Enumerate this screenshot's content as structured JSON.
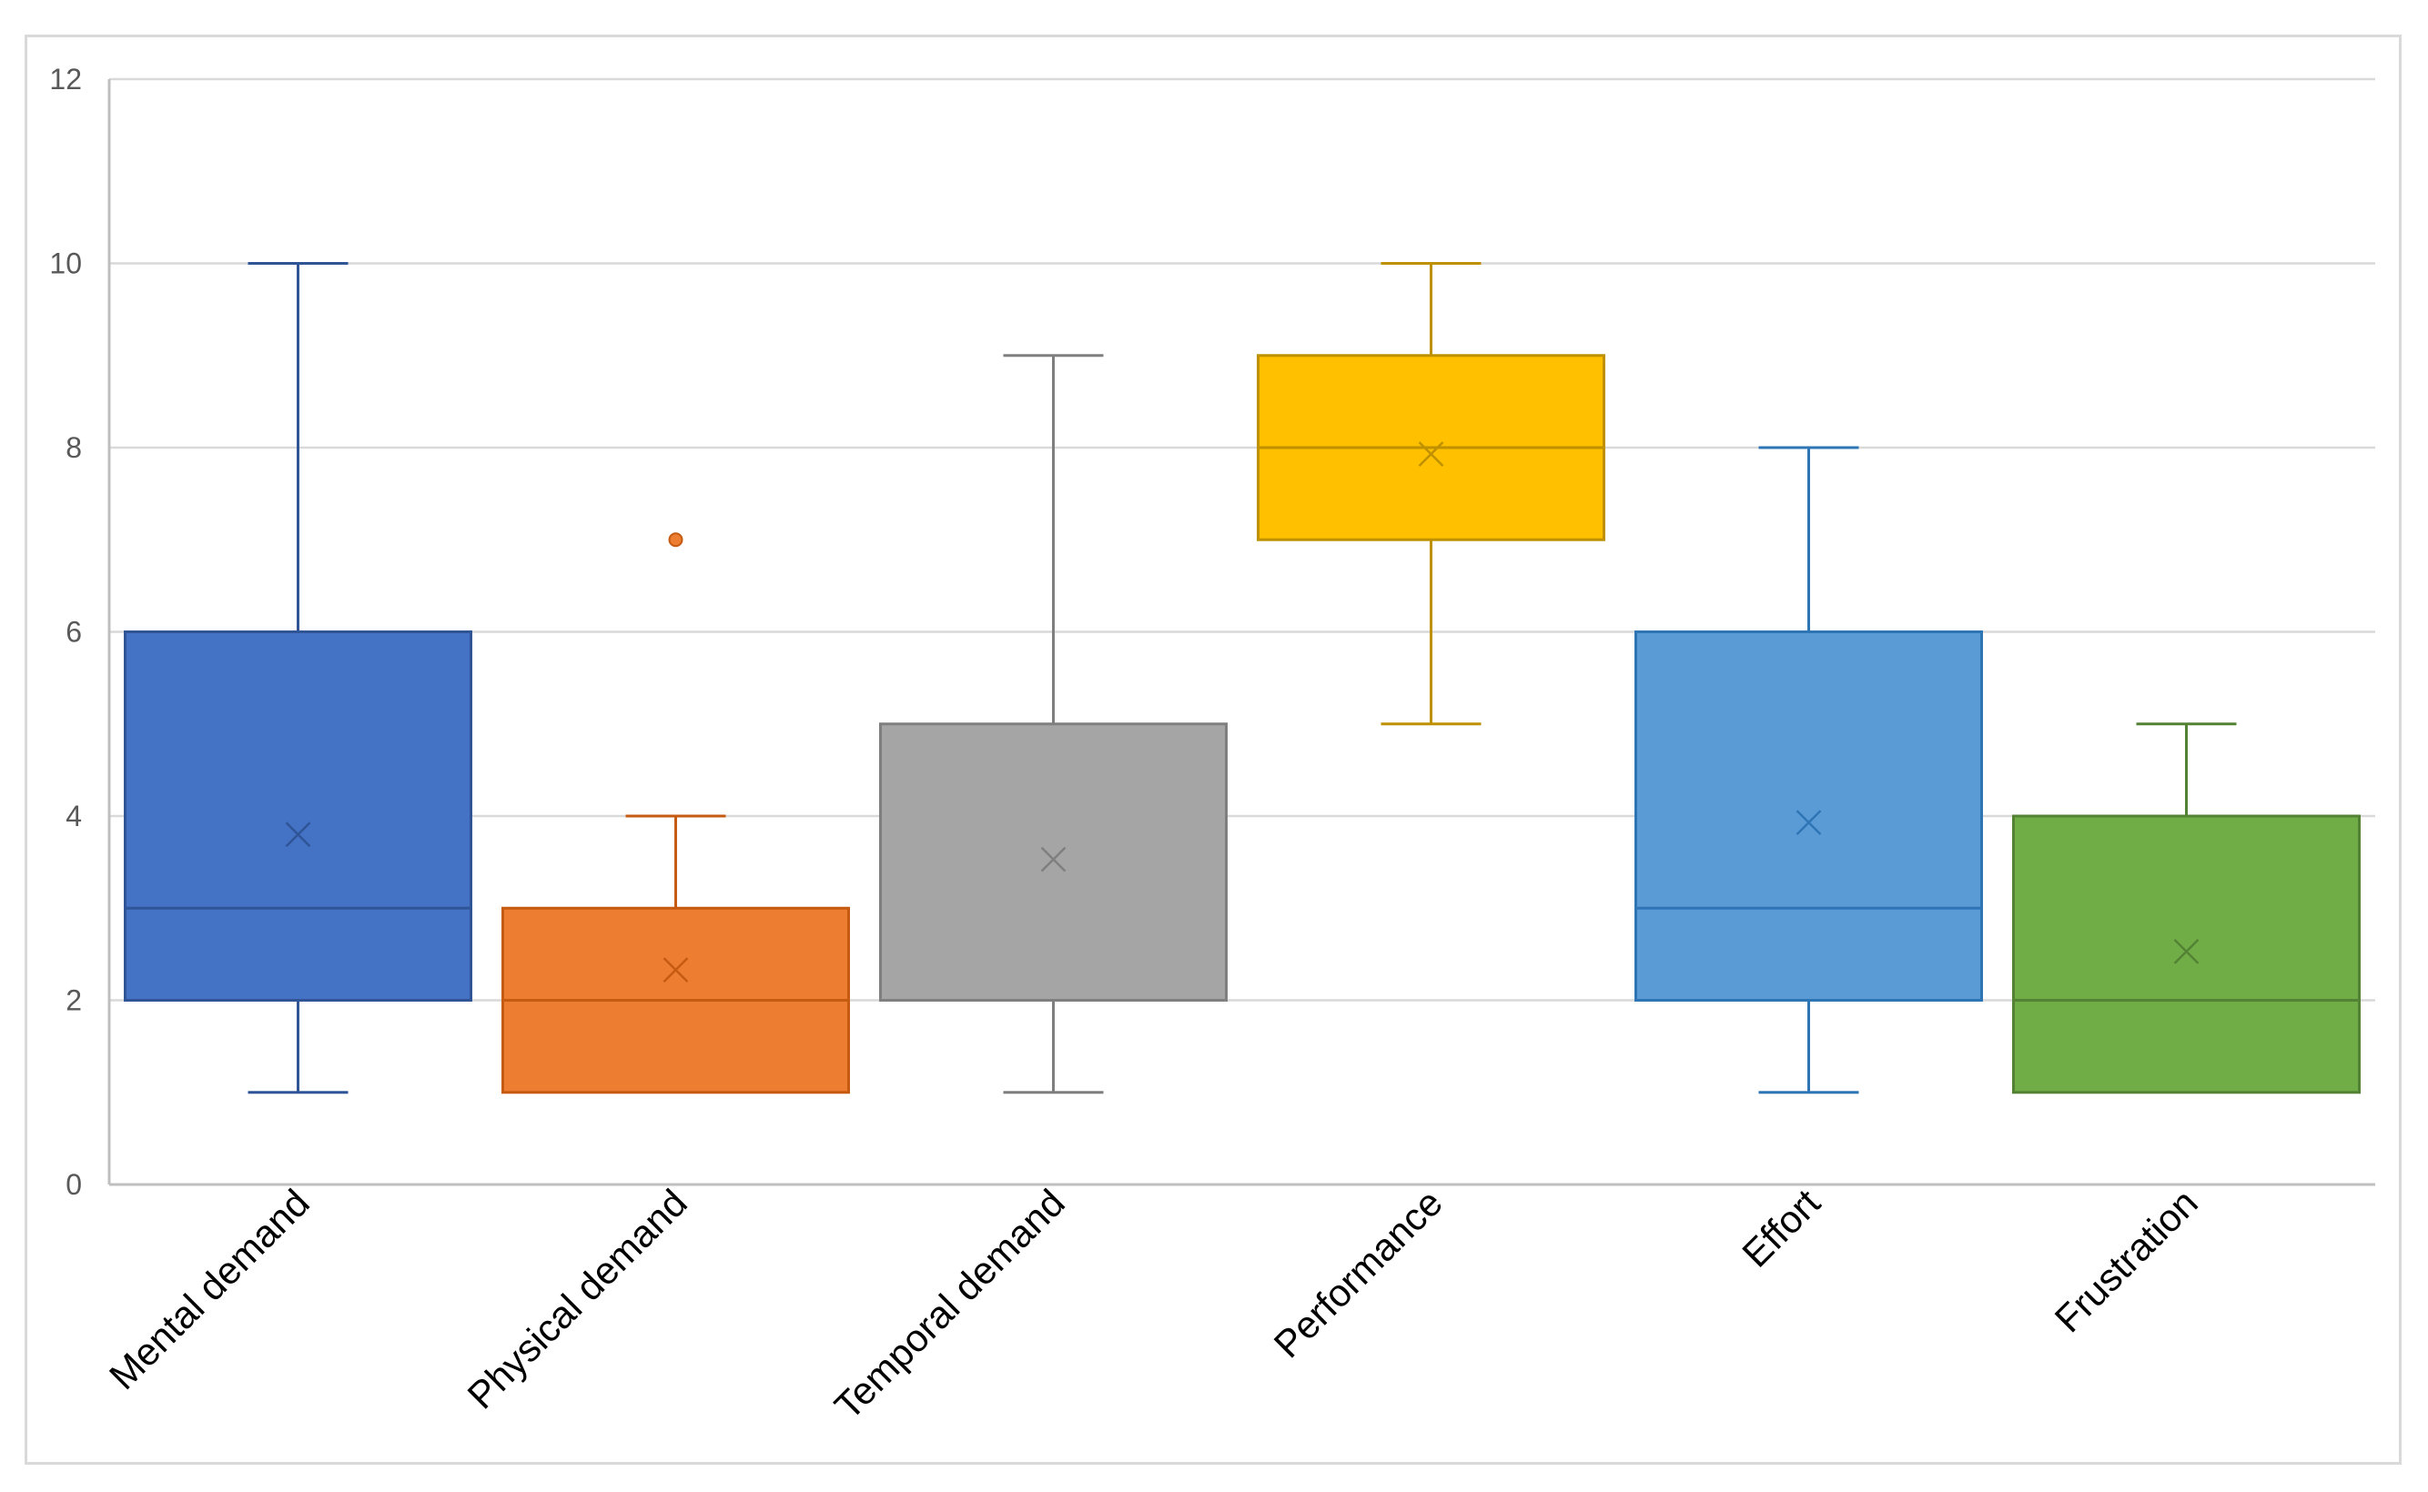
{
  "chart_data": {
    "type": "boxplot",
    "title": "",
    "xlabel": "",
    "ylabel": "",
    "ylim": [
      0,
      12
    ],
    "yticks": [
      0,
      2,
      4,
      6,
      8,
      10,
      12
    ],
    "grid": true,
    "legend": "none",
    "categories": [
      "Mental demand",
      "Physical demand",
      "Temporal demand",
      "Performance",
      "Effort",
      "Frustration"
    ],
    "series": [
      {
        "name": "Mental demand",
        "min": 1,
        "q1": 2,
        "median": 3,
        "q3": 6,
        "max": 10,
        "mean": 3.8,
        "outliers": [],
        "color": "#4472C4",
        "stroke": "#2F5597"
      },
      {
        "name": "Physical demand",
        "min": 1,
        "q1": 1,
        "median": 2,
        "q3": 3,
        "max": 4,
        "mean": 2.33,
        "outliers": [
          7
        ],
        "color": "#ED7D31",
        "stroke": "#C55A11"
      },
      {
        "name": "Temporal demand",
        "min": 1,
        "q1": 2,
        "median": 2,
        "q3": 5,
        "max": 9,
        "mean": 3.53,
        "outliers": [],
        "color": "#A5A5A5",
        "stroke": "#7F7F7F"
      },
      {
        "name": "Performance",
        "min": 5,
        "q1": 7,
        "median": 8,
        "q3": 9,
        "max": 10,
        "mean": 7.93,
        "outliers": [],
        "color": "#FFC000",
        "stroke": "#BF9000"
      },
      {
        "name": "Effort",
        "min": 1,
        "q1": 2,
        "median": 3,
        "q3": 6,
        "max": 8,
        "mean": 3.93,
        "outliers": [],
        "color": "#5B9BD5",
        "stroke": "#2E75B6"
      },
      {
        "name": "Frustration",
        "min": 1,
        "q1": 1,
        "median": 2,
        "q3": 4,
        "max": 5,
        "mean": 2.53,
        "outliers": [],
        "color": "#70AD47",
        "stroke": "#548235"
      }
    ]
  }
}
